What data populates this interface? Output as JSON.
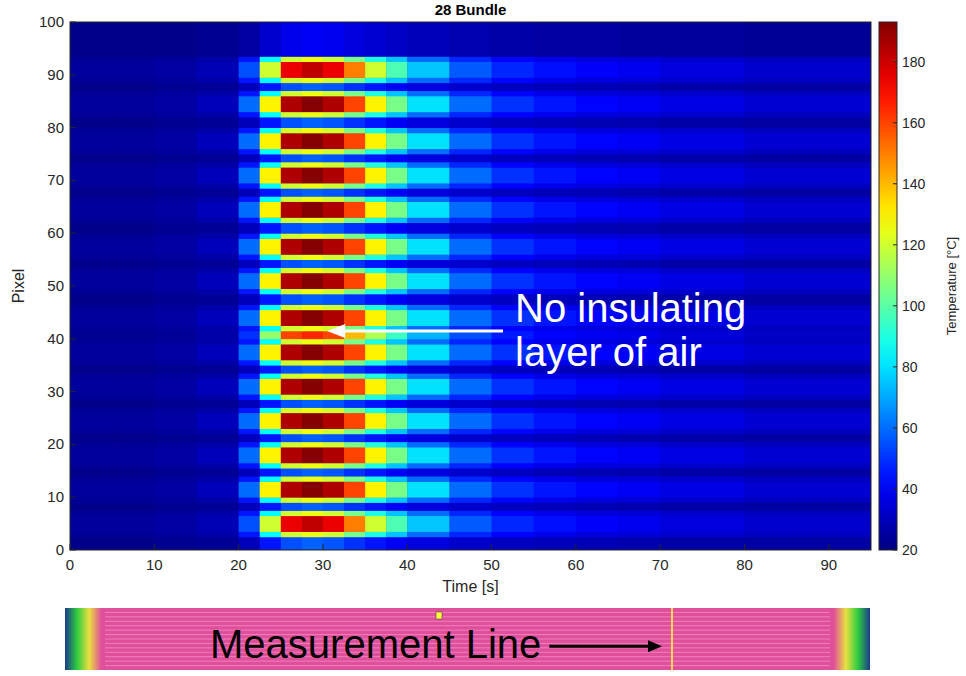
{
  "chart_data": {
    "type": "heatmap",
    "title": "28 Bundle",
    "x_label": "Time [s]",
    "y_label": "Pixel",
    "xlim": [
      0,
      95
    ],
    "ylim": [
      0,
      100
    ],
    "xticks": [
      0,
      10,
      20,
      30,
      40,
      50,
      60,
      70,
      80,
      90
    ],
    "yticks": [
      0,
      10,
      20,
      30,
      40,
      50,
      60,
      70,
      80,
      90,
      100
    ],
    "x_edges": [
      0,
      5,
      10,
      15,
      20,
      22.5,
      25,
      27.5,
      30,
      32.5,
      35,
      37.5,
      40,
      45,
      50,
      55,
      60,
      65,
      70,
      80,
      95
    ],
    "y_edges": [
      0,
      2.5,
      3.5,
      6.5,
      7.5,
      9,
      10,
      13,
      14,
      15.5,
      16.5,
      19.5,
      20.5,
      22,
      23,
      26,
      27,
      28.5,
      29.5,
      32.5,
      33.5,
      35,
      36,
      39,
      40,
      41.5,
      42.5,
      45.5,
      46.5,
      48.5,
      49.5,
      52.5,
      53.5,
      55,
      56,
      59,
      60,
      62,
      63,
      66,
      67,
      68.5,
      69.5,
      72.5,
      73.5,
      75,
      76,
      79,
      80,
      82,
      83,
      86,
      87,
      88.5,
      89.5,
      92.5,
      93.5,
      100
    ],
    "cells": [
      [
        22,
        22,
        23,
        24,
        30,
        45,
        55,
        58,
        56,
        50,
        45,
        40,
        36,
        33,
        31,
        30,
        29,
        28,
        27,
        26
      ],
      [
        24,
        24,
        25,
        27,
        45,
        85,
        120,
        125,
        120,
        105,
        90,
        75,
        60,
        48,
        42,
        38,
        36,
        35,
        33,
        31
      ],
      [
        25,
        25,
        26,
        29,
        55,
        120,
        175,
        182,
        175,
        150,
        120,
        98,
        75,
        57,
        48,
        44,
        41,
        39,
        36,
        33
      ],
      [
        24,
        24,
        25,
        27,
        45,
        85,
        120,
        125,
        120,
        105,
        90,
        75,
        60,
        48,
        42,
        38,
        36,
        35,
        33,
        31
      ],
      [
        22,
        22,
        23,
        24,
        30,
        45,
        55,
        58,
        56,
        50,
        45,
        40,
        36,
        33,
        31,
        30,
        29,
        28,
        27,
        26
      ],
      [
        24,
        24,
        25,
        27,
        45,
        85,
        120,
        125,
        120,
        105,
        90,
        75,
        60,
        48,
        42,
        38,
        36,
        35,
        33,
        31
      ],
      [
        25,
        25,
        26,
        30,
        60,
        130,
        185,
        192,
        185,
        160,
        130,
        105,
        80,
        60,
        50,
        45,
        42,
        40,
        37,
        34
      ],
      [
        24,
        24,
        25,
        27,
        45,
        85,
        120,
        125,
        120,
        105,
        90,
        75,
        60,
        48,
        42,
        38,
        36,
        35,
        33,
        31
      ],
      [
        22,
        22,
        23,
        24,
        30,
        45,
        55,
        58,
        56,
        50,
        45,
        40,
        36,
        33,
        31,
        30,
        29,
        28,
        27,
        26
      ],
      [
        24,
        24,
        25,
        27,
        45,
        85,
        120,
        125,
        120,
        105,
        90,
        75,
        60,
        48,
        42,
        38,
        36,
        35,
        33,
        31
      ],
      [
        25,
        25,
        26,
        30,
        60,
        130,
        185,
        192,
        185,
        160,
        130,
        105,
        80,
        60,
        50,
        45,
        42,
        40,
        37,
        34
      ],
      [
        24,
        24,
        25,
        27,
        45,
        85,
        120,
        125,
        120,
        105,
        90,
        75,
        60,
        48,
        42,
        38,
        36,
        35,
        33,
        31
      ],
      [
        22,
        22,
        23,
        24,
        30,
        45,
        55,
        58,
        56,
        50,
        45,
        40,
        36,
        33,
        31,
        30,
        29,
        28,
        27,
        26
      ],
      [
        24,
        24,
        25,
        27,
        45,
        85,
        120,
        125,
        120,
        105,
        90,
        75,
        60,
        48,
        42,
        38,
        36,
        35,
        33,
        31
      ],
      [
        25,
        25,
        26,
        30,
        60,
        130,
        185,
        192,
        185,
        160,
        130,
        105,
        80,
        60,
        50,
        45,
        42,
        40,
        37,
        34
      ],
      [
        24,
        24,
        25,
        27,
        45,
        85,
        120,
        125,
        120,
        105,
        90,
        75,
        60,
        48,
        42,
        38,
        36,
        35,
        33,
        31
      ],
      [
        22,
        22,
        23,
        24,
        30,
        45,
        55,
        58,
        56,
        50,
        45,
        40,
        36,
        33,
        31,
        30,
        29,
        28,
        27,
        26
      ],
      [
        24,
        24,
        25,
        27,
        45,
        85,
        120,
        125,
        120,
        105,
        90,
        75,
        60,
        48,
        42,
        38,
        36,
        35,
        33,
        31
      ],
      [
        25,
        25,
        26,
        30,
        60,
        130,
        185,
        192,
        185,
        160,
        130,
        105,
        80,
        60,
        50,
        45,
        42,
        40,
        37,
        34
      ],
      [
        24,
        24,
        25,
        27,
        45,
        85,
        120,
        125,
        120,
        105,
        90,
        75,
        60,
        48,
        42,
        38,
        36,
        35,
        33,
        31
      ],
      [
        22,
        22,
        23,
        24,
        30,
        45,
        55,
        58,
        56,
        50,
        45,
        40,
        36,
        33,
        31,
        30,
        29,
        28,
        27,
        26
      ],
      [
        24,
        24,
        25,
        27,
        45,
        85,
        120,
        125,
        120,
        105,
        90,
        75,
        60,
        48,
        42,
        38,
        36,
        35,
        33,
        31
      ],
      [
        25,
        25,
        26,
        30,
        60,
        130,
        185,
        192,
        185,
        160,
        130,
        105,
        80,
        60,
        50,
        45,
        42,
        40,
        37,
        34
      ],
      [
        24,
        24,
        25,
        27,
        45,
        85,
        120,
        125,
        120,
        105,
        90,
        75,
        60,
        48,
        42,
        38,
        36,
        35,
        33,
        31
      ],
      [
        23,
        23,
        24,
        27,
        50,
        110,
        160,
        165,
        160,
        140,
        115,
        95,
        72,
        55,
        46,
        42,
        40,
        38,
        35,
        32
      ],
      [
        24,
        24,
        25,
        27,
        45,
        85,
        120,
        125,
        120,
        105,
        90,
        75,
        60,
        48,
        42,
        38,
        36,
        35,
        33,
        31
      ],
      [
        25,
        25,
        26,
        30,
        60,
        130,
        185,
        192,
        185,
        160,
        130,
        105,
        80,
        60,
        50,
        45,
        42,
        40,
        37,
        34
      ],
      [
        24,
        24,
        25,
        27,
        45,
        85,
        120,
        125,
        120,
        105,
        90,
        75,
        60,
        48,
        42,
        38,
        36,
        35,
        33,
        31
      ],
      [
        22,
        22,
        23,
        24,
        30,
        45,
        55,
        58,
        56,
        50,
        45,
        40,
        36,
        33,
        31,
        30,
        29,
        28,
        27,
        26
      ],
      [
        24,
        24,
        25,
        27,
        45,
        85,
        120,
        125,
        120,
        105,
        90,
        75,
        60,
        48,
        42,
        38,
        36,
        35,
        33,
        31
      ],
      [
        25,
        25,
        26,
        30,
        60,
        130,
        185,
        192,
        185,
        160,
        130,
        105,
        80,
        60,
        50,
        45,
        42,
        40,
        37,
        34
      ],
      [
        24,
        24,
        25,
        27,
        45,
        85,
        120,
        125,
        120,
        105,
        90,
        75,
        60,
        48,
        42,
        38,
        36,
        35,
        33,
        31
      ],
      [
        22,
        22,
        23,
        24,
        30,
        45,
        55,
        58,
        56,
        50,
        45,
        40,
        36,
        33,
        31,
        30,
        29,
        28,
        27,
        26
      ],
      [
        24,
        24,
        25,
        27,
        45,
        85,
        120,
        125,
        120,
        105,
        90,
        75,
        60,
        48,
        42,
        38,
        36,
        35,
        33,
        31
      ],
      [
        25,
        25,
        26,
        30,
        60,
        130,
        185,
        192,
        185,
        160,
        130,
        105,
        80,
        60,
        50,
        45,
        42,
        40,
        37,
        34
      ],
      [
        24,
        24,
        25,
        27,
        45,
        85,
        120,
        125,
        120,
        105,
        90,
        75,
        60,
        48,
        42,
        38,
        36,
        35,
        33,
        31
      ],
      [
        22,
        22,
        23,
        24,
        30,
        45,
        55,
        58,
        56,
        50,
        45,
        40,
        36,
        33,
        31,
        30,
        29,
        28,
        27,
        26
      ],
      [
        24,
        24,
        25,
        27,
        45,
        85,
        120,
        125,
        120,
        105,
        90,
        75,
        60,
        48,
        42,
        38,
        36,
        35,
        33,
        31
      ],
      [
        25,
        25,
        26,
        30,
        60,
        130,
        185,
        192,
        185,
        160,
        130,
        105,
        80,
        60,
        50,
        45,
        42,
        40,
        37,
        34
      ],
      [
        24,
        24,
        25,
        27,
        45,
        85,
        120,
        125,
        120,
        105,
        90,
        75,
        60,
        48,
        42,
        38,
        36,
        35,
        33,
        31
      ],
      [
        22,
        22,
        23,
        24,
        30,
        45,
        55,
        58,
        56,
        50,
        45,
        40,
        36,
        33,
        31,
        30,
        29,
        28,
        27,
        26
      ],
      [
        24,
        24,
        25,
        27,
        45,
        85,
        120,
        125,
        120,
        105,
        90,
        75,
        60,
        48,
        42,
        38,
        36,
        35,
        33,
        31
      ],
      [
        25,
        25,
        26,
        30,
        60,
        130,
        185,
        192,
        185,
        160,
        130,
        105,
        80,
        60,
        50,
        45,
        42,
        40,
        37,
        34
      ],
      [
        24,
        24,
        25,
        27,
        45,
        85,
        120,
        125,
        120,
        105,
        90,
        75,
        60,
        48,
        42,
        38,
        36,
        35,
        33,
        31
      ],
      [
        22,
        22,
        23,
        24,
        30,
        45,
        55,
        58,
        56,
        50,
        45,
        40,
        36,
        33,
        31,
        30,
        29,
        28,
        27,
        26
      ],
      [
        24,
        24,
        25,
        27,
        45,
        85,
        120,
        125,
        120,
        105,
        90,
        75,
        60,
        48,
        42,
        38,
        36,
        35,
        33,
        31
      ],
      [
        25,
        25,
        26,
        30,
        60,
        130,
        185,
        192,
        185,
        160,
        130,
        105,
        80,
        60,
        50,
        45,
        42,
        40,
        37,
        34
      ],
      [
        24,
        24,
        25,
        27,
        45,
        85,
        120,
        125,
        120,
        105,
        90,
        75,
        60,
        48,
        42,
        38,
        36,
        35,
        33,
        31
      ],
      [
        22,
        22,
        23,
        24,
        30,
        45,
        55,
        58,
        56,
        50,
        45,
        40,
        36,
        33,
        31,
        30,
        29,
        28,
        27,
        26
      ],
      [
        24,
        24,
        25,
        27,
        45,
        85,
        120,
        125,
        120,
        105,
        90,
        75,
        60,
        48,
        42,
        38,
        36,
        35,
        33,
        31
      ],
      [
        25,
        25,
        26,
        30,
        60,
        130,
        185,
        192,
        185,
        160,
        130,
        105,
        80,
        60,
        50,
        45,
        42,
        40,
        37,
        34
      ],
      [
        24,
        24,
        25,
        27,
        45,
        85,
        120,
        125,
        120,
        105,
        90,
        75,
        60,
        48,
        42,
        38,
        36,
        35,
        33,
        31
      ],
      [
        22,
        22,
        23,
        24,
        30,
        45,
        55,
        58,
        56,
        50,
        45,
        40,
        36,
        33,
        31,
        30,
        29,
        28,
        27,
        26
      ],
      [
        24,
        24,
        25,
        27,
        45,
        85,
        120,
        125,
        120,
        105,
        90,
        75,
        60,
        48,
        42,
        38,
        36,
        35,
        33,
        31
      ],
      [
        25,
        25,
        26,
        29,
        55,
        120,
        175,
        182,
        175,
        150,
        120,
        98,
        75,
        57,
        48,
        44,
        41,
        39,
        36,
        33
      ],
      [
        24,
        24,
        25,
        27,
        45,
        85,
        120,
        125,
        120,
        105,
        90,
        75,
        60,
        48,
        42,
        38,
        36,
        35,
        33,
        31
      ],
      [
        22,
        22,
        22,
        23,
        26,
        33,
        38,
        40,
        39,
        36,
        34,
        32,
        30,
        28,
        27,
        26,
        26,
        25,
        25,
        24
      ]
    ],
    "colorbar_lim": [
      20,
      193
    ],
    "colorbar_ticks": [
      20,
      40,
      60,
      80,
      100,
      120,
      140,
      160,
      180
    ],
    "colorbar_label": "Temperature [°C]",
    "annotation": [
      "No insulating",
      "layer of air"
    ],
    "inset_label": "Measurement Line"
  }
}
